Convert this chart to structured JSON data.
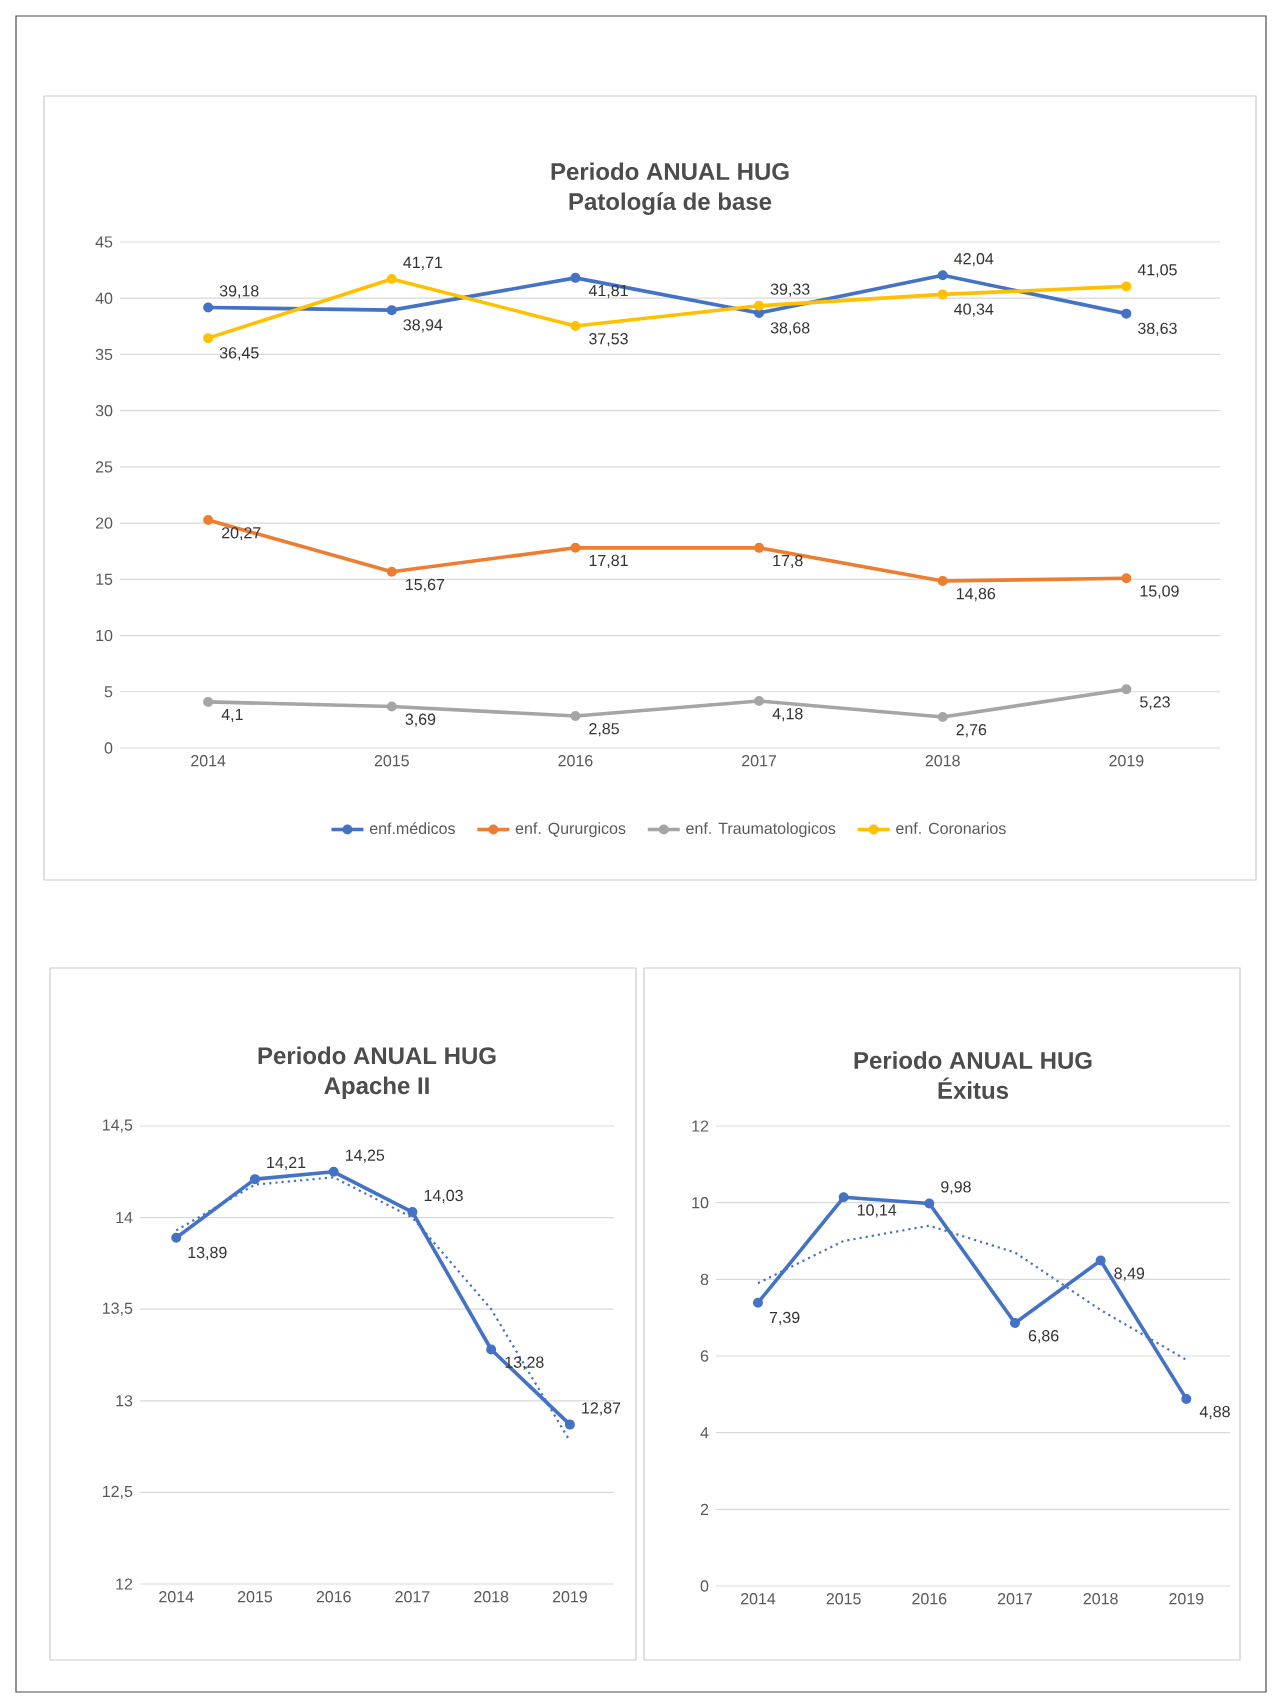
{
  "chart_data": [
    {
      "type": "line",
      "title": "Periodo ANUAL HUG",
      "subtitle": "Patología de base",
      "categories": [
        "2014",
        "2015",
        "2016",
        "2017",
        "2018",
        "2019"
      ],
      "ylim": [
        0,
        45
      ],
      "yticks": [
        0,
        5,
        10,
        15,
        20,
        25,
        30,
        35,
        40,
        45
      ],
      "grid": "y",
      "legend": "bottom",
      "marker": "circle",
      "line_style": "solid",
      "series": [
        {
          "name": "enf.médicos",
          "color": "#4472c4",
          "values": [
            39.18,
            38.94,
            41.81,
            38.68,
            42.04,
            38.63
          ],
          "value_labels": [
            "39,18",
            "38,94",
            "41,81",
            "38,68",
            "42,04",
            "38,63"
          ]
        },
        {
          "name": "enf. Qururgicos",
          "color": "#ed7d31",
          "values": [
            20.27,
            15.67,
            17.81,
            17.8,
            14.86,
            15.09
          ],
          "value_labels": [
            "20,27",
            "15,67",
            "17,81",
            "17,8",
            "14,86",
            "15,09"
          ]
        },
        {
          "name": "enf. Traumatologicos",
          "color": "#a5a5a5",
          "values": [
            4.1,
            3.69,
            2.85,
            4.18,
            2.76,
            5.23
          ],
          "value_labels": [
            "4,1",
            "3,69",
            "2,85",
            "4,18",
            "2,76",
            "5,23"
          ]
        },
        {
          "name": "enf. Coronarios",
          "color": "#ffc000",
          "values": [
            36.45,
            41.71,
            37.53,
            39.33,
            40.34,
            41.05
          ],
          "value_labels": [
            "36,45",
            "41,71",
            "37,53",
            "39,33",
            "40,34",
            "41,05"
          ]
        }
      ]
    },
    {
      "type": "line",
      "title": "Periodo ANUAL HUG",
      "subtitle": "Apache II",
      "categories": [
        "2014",
        "2015",
        "2016",
        "2017",
        "2018",
        "2019"
      ],
      "ylim": [
        12,
        14.5
      ],
      "yticks": [
        {
          "value": 12,
          "label": "12"
        },
        {
          "value": 12.5,
          "label": "12,5"
        },
        {
          "value": 13,
          "label": "13"
        },
        {
          "value": 13.5,
          "label": "13,5"
        },
        {
          "value": 14,
          "label": "14"
        },
        {
          "value": 14.5,
          "label": "14,5"
        }
      ],
      "grid": "y",
      "marker": "circle",
      "line_style": "solid",
      "series": [
        {
          "color": "#4472c4",
          "values": [
            13.89,
            14.21,
            14.25,
            14.03,
            13.28,
            12.87
          ],
          "value_labels": [
            "13,89",
            "14,21",
            "14,25",
            "14,03",
            "13,28",
            "12,87"
          ]
        },
        {
          "color": "#4472c4",
          "values": [
            13.93,
            14.18,
            14.22,
            14.0,
            13.5,
            12.78
          ],
          "marker": "none",
          "line_style": "dotted"
        }
      ]
    },
    {
      "type": "line",
      "title": "Periodo ANUAL HUG",
      "subtitle": "Éxitus",
      "categories": [
        "2014",
        "2015",
        "2016",
        "2017",
        "2018",
        "2019"
      ],
      "ylim": [
        0,
        12
      ],
      "yticks": [
        0,
        2,
        4,
        6,
        8,
        10,
        12
      ],
      "grid": "y",
      "marker": "circle",
      "line_style": "solid",
      "series": [
        {
          "color": "#4472c4",
          "values": [
            7.39,
            10.14,
            9.98,
            6.86,
            8.49,
            4.88
          ],
          "value_labels": [
            "7,39",
            "10,14",
            "9,98",
            "6,86",
            "8,49",
            "4,88"
          ]
        },
        {
          "color": "#4472c4",
          "values": [
            7.9,
            9.0,
            9.4,
            8.7,
            7.2,
            5.9
          ],
          "marker": "none",
          "line_style": "dotted"
        }
      ]
    }
  ]
}
